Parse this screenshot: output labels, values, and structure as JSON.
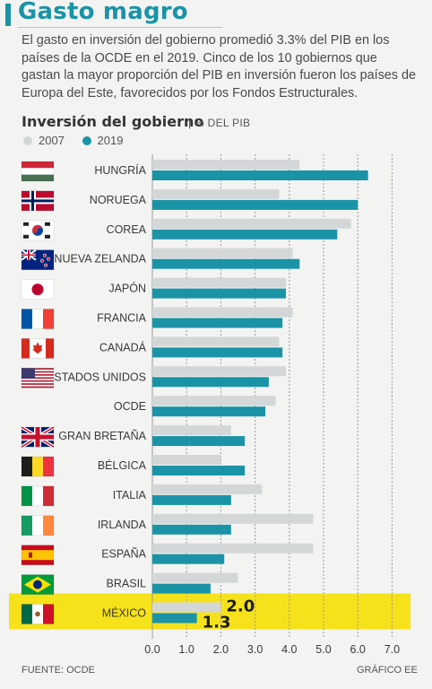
{
  "header": {
    "title": "Gasto magro",
    "subtitle": "El gasto en inversión del gobierno promedió 3.3% del PIB en los países de la OCDE en el 2019. Cinco de los 10 gobiernos que gastan la mayor proporción del PIB en inversión fueron los países de Europa del Este, favorecidos por los Fondos Estructurales."
  },
  "chart_title": "Inversión del gobierno",
  "chart_unit": "| % DEL PIB",
  "footer": {
    "source": "FUENTE: OCDE",
    "credit": "GRÁFICO EE"
  },
  "colors": {
    "accent": "#1a93a7",
    "series_2007": "#d3d7d8",
    "series_2019": "#1a93a7",
    "highlight": "#f6e21a"
  },
  "chart_data": {
    "type": "bar",
    "orientation": "horizontal",
    "categories": [
      "HUNGRÍA",
      "NORUEGA",
      "COREA",
      "NUEVA ZELANDA",
      "JAPÓN",
      "FRANCIA",
      "CANADÁ",
      "ESTADOS UNIDOS",
      "OCDE",
      "GRAN BRETAÑA",
      "BÉLGICA",
      "ITALIA",
      "IRLANDA",
      "ESPAÑA",
      "BRASIL",
      "MÉXICO"
    ],
    "flags": [
      "hungary",
      "norway",
      "korea",
      "new-zealand",
      "japan",
      "france",
      "canada",
      "usa",
      "",
      "united-kingdom",
      "belgium",
      "italy",
      "ireland",
      "spain",
      "brazil",
      "mexico"
    ],
    "series": [
      {
        "name": "2007",
        "values": [
          4.3,
          3.7,
          5.8,
          4.1,
          3.9,
          4.1,
          3.7,
          3.9,
          3.6,
          2.3,
          2.0,
          3.2,
          4.7,
          4.7,
          2.5,
          2.0
        ]
      },
      {
        "name": "2019",
        "values": [
          6.3,
          6.0,
          5.4,
          4.3,
          3.9,
          3.8,
          3.8,
          3.4,
          3.3,
          2.7,
          2.7,
          2.3,
          2.3,
          2.1,
          1.7,
          1.3
        ]
      }
    ],
    "xlim": [
      0,
      7.3
    ],
    "xticks": [
      "0.0",
      "1.0",
      "2.0",
      "3.0",
      "4.0",
      "5.0",
      "6.0",
      "7.0"
    ],
    "highlight": {
      "category": "MÉXICO",
      "labels": [
        "2.0",
        "1.3"
      ]
    },
    "grid": "vertical dashed",
    "legend_position": "top-left"
  }
}
